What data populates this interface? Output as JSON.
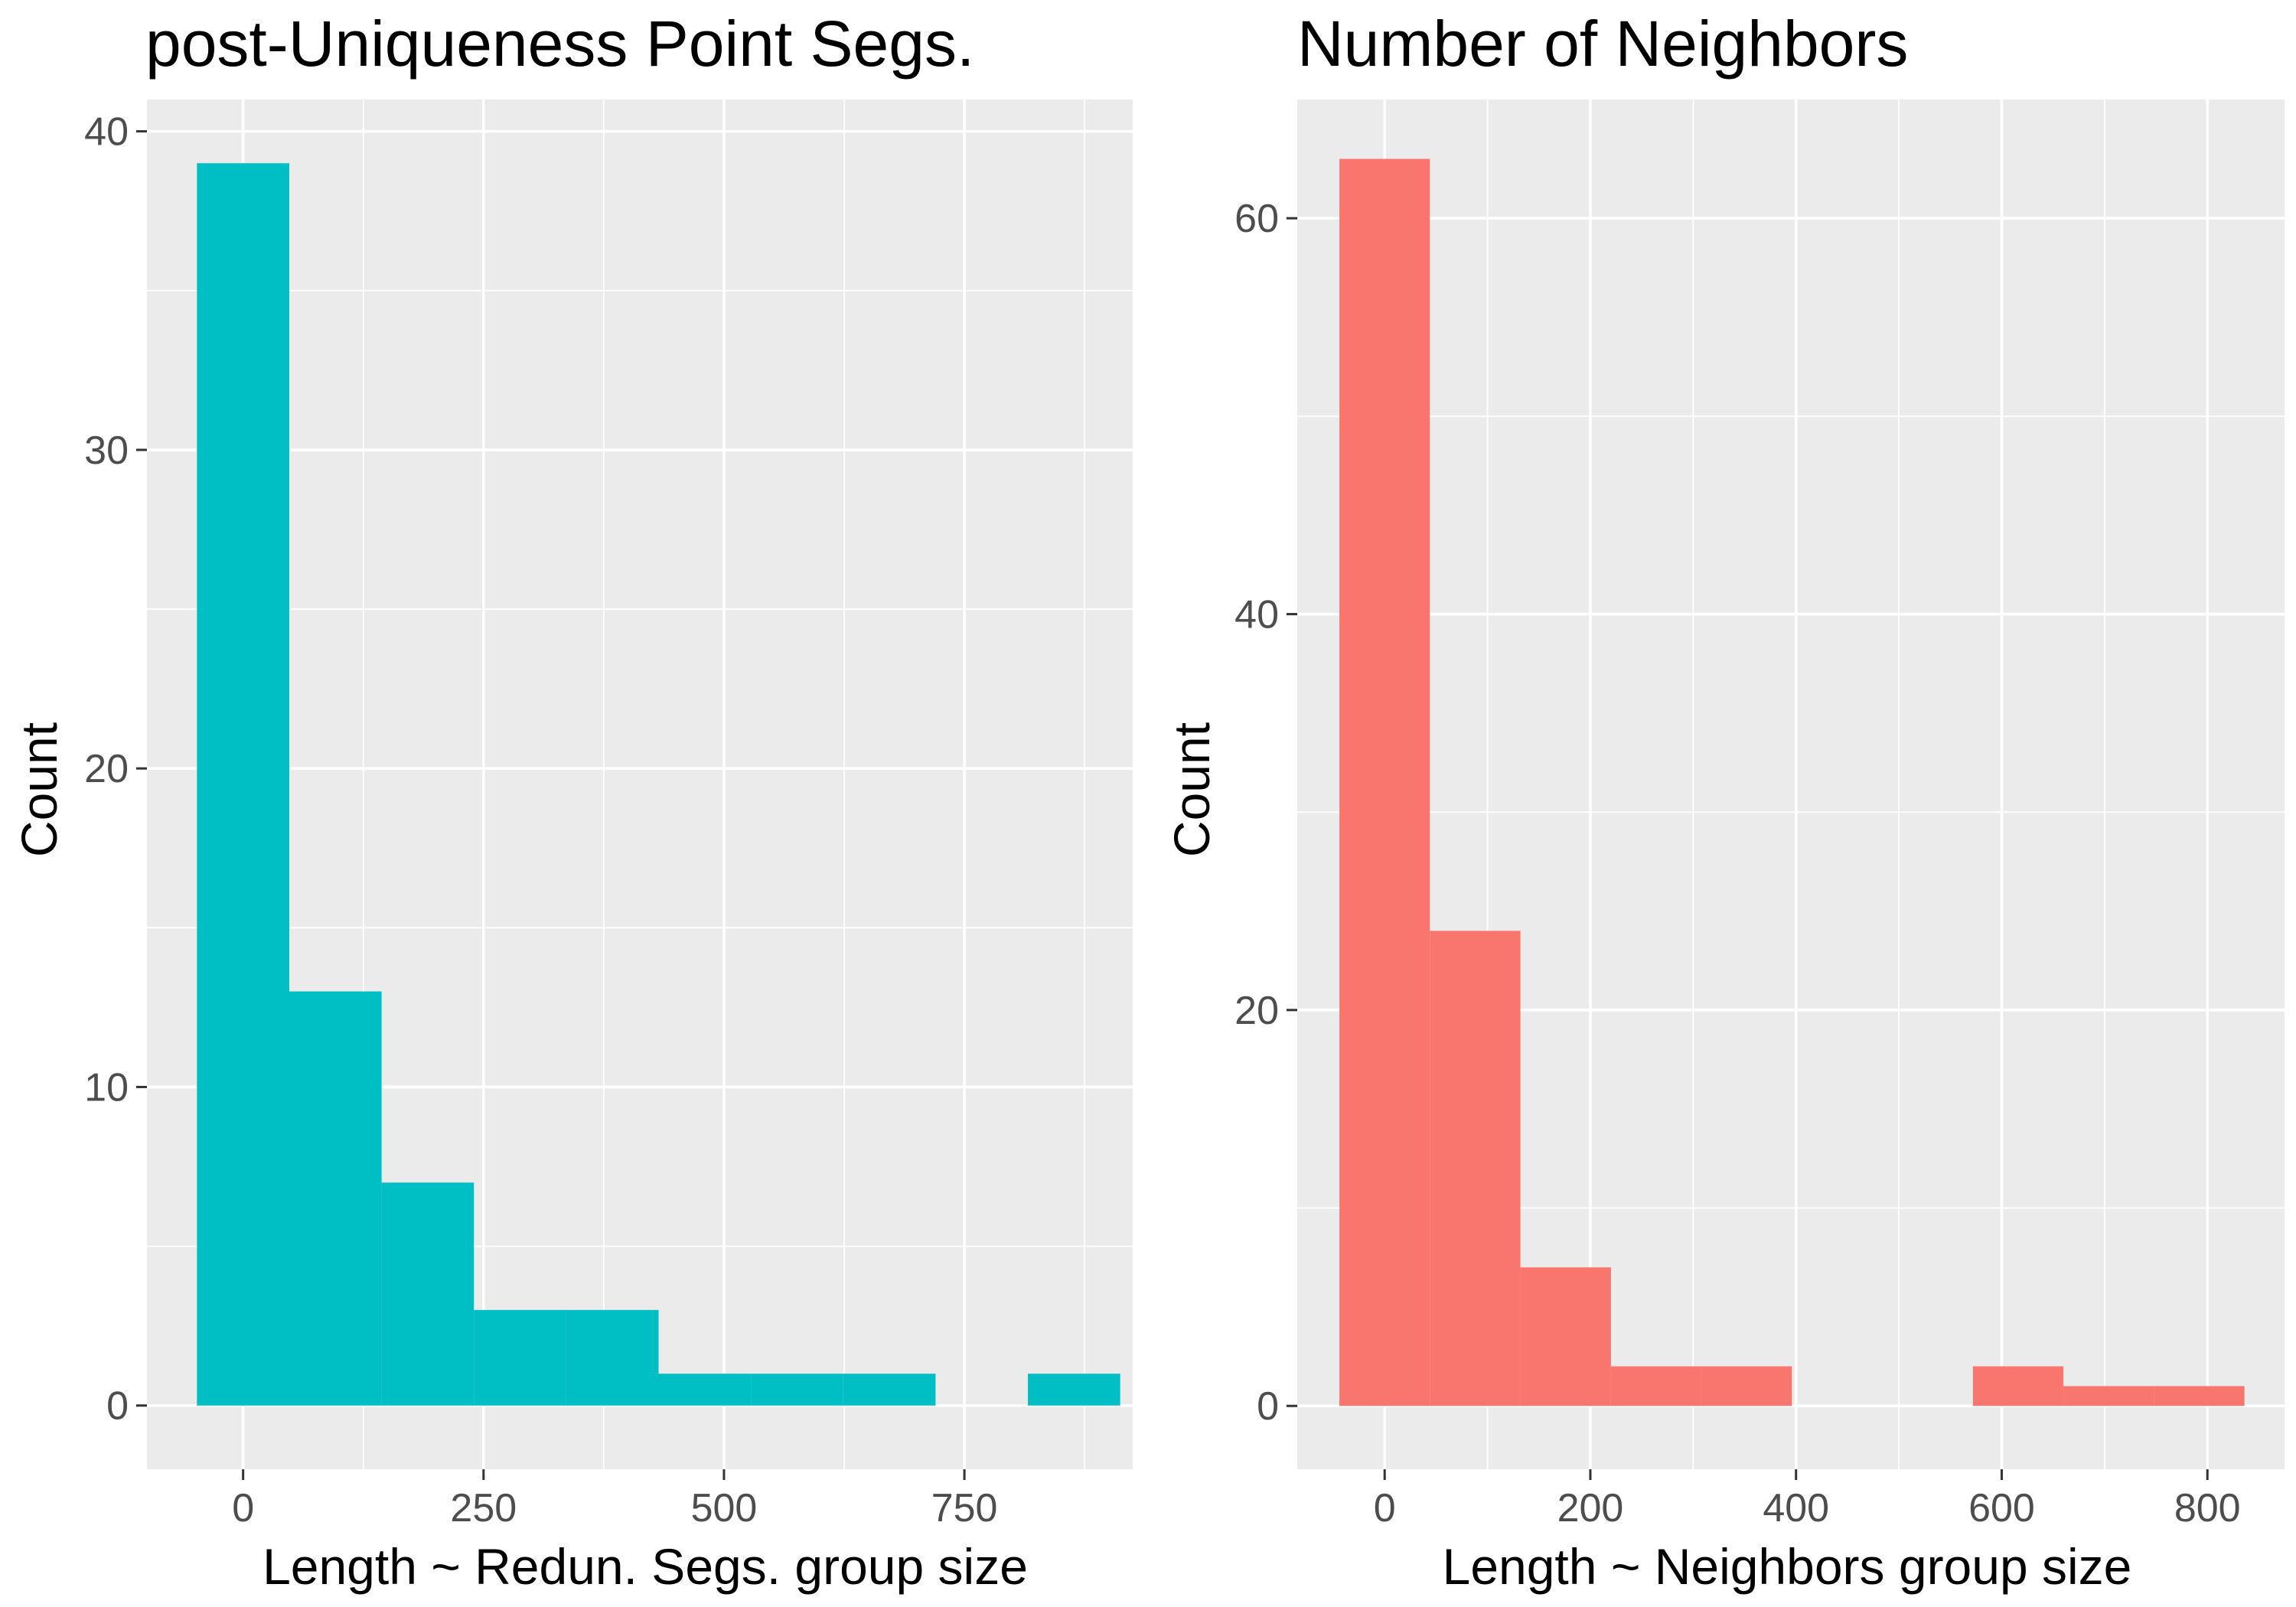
{
  "chart_data": [
    {
      "type": "bar",
      "subtype": "histogram",
      "title": "post-Uniqueness Point Segs.",
      "xlabel": "Length ~ Redun. Segs. group size",
      "ylabel": "Count",
      "xlim": [
        -100,
        925
      ],
      "ylim": [
        -2,
        41
      ],
      "xticks": [
        0,
        250,
        500,
        750
      ],
      "yticks": [
        0,
        10,
        20,
        30,
        40
      ],
      "xminor": [
        125,
        375,
        625,
        875
      ],
      "yminor": [
        5,
        15,
        25,
        35
      ],
      "bin_width": 96.1,
      "bins": [
        {
          "start": -48,
          "end": 48,
          "count": 39
        },
        {
          "start": 48,
          "end": 144,
          "count": 13
        },
        {
          "start": 144,
          "end": 240,
          "count": 7
        },
        {
          "start": 240,
          "end": 336,
          "count": 3
        },
        {
          "start": 336,
          "end": 432,
          "count": 3
        },
        {
          "start": 432,
          "end": 528,
          "count": 1
        },
        {
          "start": 528,
          "end": 624,
          "count": 1
        },
        {
          "start": 624,
          "end": 720,
          "count": 1
        },
        {
          "start": 720,
          "end": 816,
          "count": 0
        },
        {
          "start": 816,
          "end": 912,
          "count": 1
        }
      ],
      "color": "#00BFC4",
      "panel_bg": "#EBEBEB",
      "grid": true
    },
    {
      "type": "bar",
      "subtype": "histogram",
      "title": "Number of Neighbors",
      "xlabel": "Length ~ Neighbors group size",
      "ylabel": "Count",
      "xlim": [
        -85,
        875
      ],
      "ylim": [
        -3.2,
        66
      ],
      "xticks": [
        0,
        200,
        400,
        600,
        800
      ],
      "yticks": [
        0,
        20,
        40,
        60
      ],
      "xminor": [
        100,
        300,
        500,
        700
      ],
      "yminor": [
        10,
        30,
        50
      ],
      "bin_width": 87.9,
      "bins": [
        {
          "start": -44,
          "end": 44,
          "count": 63
        },
        {
          "start": 44,
          "end": 132,
          "count": 24
        },
        {
          "start": 132,
          "end": 220,
          "count": 7
        },
        {
          "start": 220,
          "end": 308,
          "count": 2
        },
        {
          "start": 308,
          "end": 396,
          "count": 2
        },
        {
          "start": 396,
          "end": 484,
          "count": 0
        },
        {
          "start": 484,
          "end": 572,
          "count": 0
        },
        {
          "start": 572,
          "end": 660,
          "count": 2
        },
        {
          "start": 660,
          "end": 748,
          "count": 1
        },
        {
          "start": 748,
          "end": 836,
          "count": 1
        }
      ],
      "color": "#F8766D",
      "panel_bg": "#EBEBEB",
      "grid": true
    }
  ]
}
